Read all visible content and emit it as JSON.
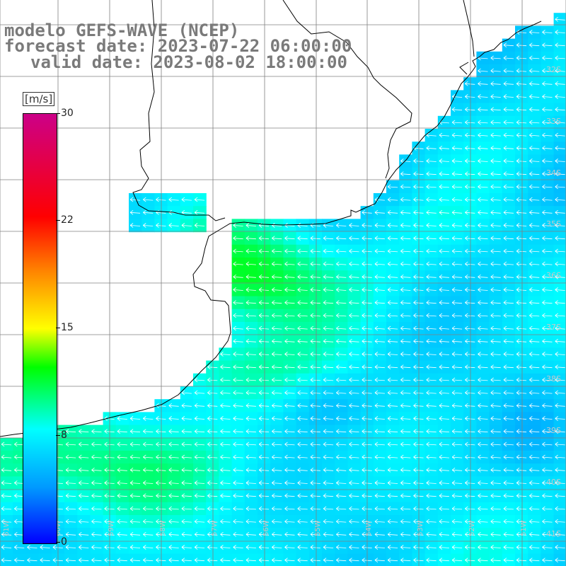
{
  "header": {
    "model_line": "modelo GEFS-WAVE (NCEP)",
    "forecast_line": "forecast date: 2023-07-22 06:00:00",
    "valid_line": "valid date: 2023-08-02 18:00:00"
  },
  "colorbar": {
    "unit": "[m/s]",
    "ticks": [
      "30",
      "22",
      "15",
      "8",
      "0"
    ],
    "tick_values": [
      30,
      22,
      15,
      8,
      0
    ],
    "min": 0,
    "max": 30,
    "colors": [
      "#0000ff",
      "#0099ff",
      "#00ffff",
      "#00ff00",
      "#ffff00",
      "#ff8800",
      "#ff0000",
      "#cc0088"
    ]
  },
  "chart_data": {
    "type": "heatmap",
    "variable": "wind speed",
    "unit": "m/s",
    "wind_direction": "from east (arrows pointing west)",
    "latitude_labels": [
      "32S",
      "33S",
      "34S",
      "35S",
      "36S",
      "37S",
      "38S",
      "39S",
      "40S",
      "41S"
    ],
    "longitude_labels": [
      "61W",
      "60W",
      "59W",
      "58W",
      "57W",
      "56W",
      "55W",
      "54W",
      "53W",
      "52W",
      "51W"
    ],
    "grid": true
  },
  "colors": {
    "land": "#ffffff",
    "coastline": "#000000",
    "gridline": "#808080",
    "header_text": "#7a7a7a",
    "arrow": "#ffffff"
  }
}
